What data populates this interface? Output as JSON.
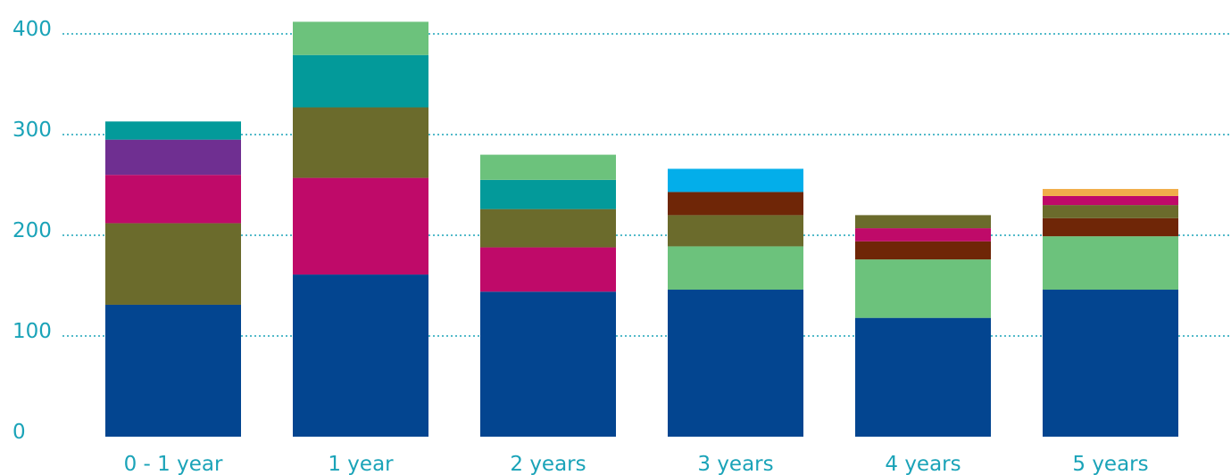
{
  "chart_data": {
    "type": "bar",
    "stacked": true,
    "categories": [
      "0 - 1 year",
      "1 year",
      "2 years",
      "3 years",
      "4 years",
      "5 years"
    ],
    "ylim": [
      0,
      400
    ],
    "yticks": [
      0,
      100,
      200,
      300,
      400
    ],
    "grid": true,
    "gridlines_at": [
      100,
      200,
      300,
      400
    ],
    "title": "",
    "xlabel": "",
    "ylabel": "",
    "segments": [
      [
        {
          "value": 131,
          "color": "#034590"
        },
        {
          "value": 81,
          "color": "#6b6b2c"
        },
        {
          "value": 48,
          "color": "#bf0a69"
        },
        {
          "value": 35,
          "color": "#6f2f91"
        },
        {
          "value": 18,
          "color": "#039a9a"
        }
      ],
      [
        {
          "value": 161,
          "color": "#034590"
        },
        {
          "value": 96,
          "color": "#bf0a69"
        },
        {
          "value": 70,
          "color": "#6b6b2c"
        },
        {
          "value": 52,
          "color": "#039a9a"
        },
        {
          "value": 33,
          "color": "#6cc27c"
        }
      ],
      [
        {
          "value": 144,
          "color": "#034590"
        },
        {
          "value": 44,
          "color": "#bf0a69"
        },
        {
          "value": 38,
          "color": "#6b6b2c"
        },
        {
          "value": 29,
          "color": "#039a9a"
        },
        {
          "value": 25,
          "color": "#6cc27c"
        }
      ],
      [
        {
          "value": 146,
          "color": "#034590"
        },
        {
          "value": 43,
          "color": "#6cc27c"
        },
        {
          "value": 31,
          "color": "#6b6b2c"
        },
        {
          "value": 23,
          "color": "#6f2607"
        },
        {
          "value": 23,
          "color": "#03aeea"
        }
      ],
      [
        {
          "value": 118,
          "color": "#034590"
        },
        {
          "value": 58,
          "color": "#6cc27c"
        },
        {
          "value": 18,
          "color": "#6f2607"
        },
        {
          "value": 13,
          "color": "#bf0a69"
        },
        {
          "value": 13,
          "color": "#6b6b2c"
        }
      ],
      [
        {
          "value": 146,
          "color": "#034590"
        },
        {
          "value": 53,
          "color": "#6cc27c"
        },
        {
          "value": 18,
          "color": "#6f2607"
        },
        {
          "value": 13,
          "color": "#6b6b2c"
        },
        {
          "value": 9,
          "color": "#bf0a69"
        },
        {
          "value": 7,
          "color": "#f1ae4a"
        }
      ]
    ]
  }
}
